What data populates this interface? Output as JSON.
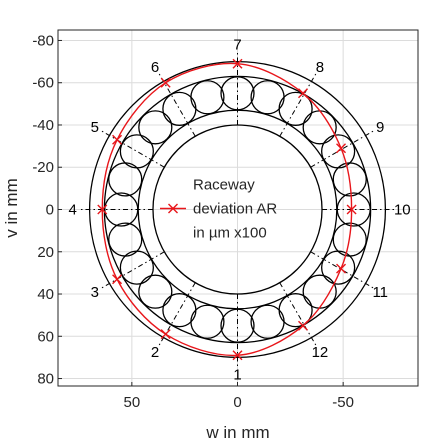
{
  "chart_data": {
    "type": "scatter",
    "xlabel": "w in mm",
    "ylabel": "v in mm",
    "xlim": [
      85,
      -85
    ],
    "ylim": [
      80,
      -85
    ],
    "x_reversed": true,
    "y_reversed": true,
    "xticks": [
      50,
      0,
      -50
    ],
    "yticks": [
      -80,
      -60,
      -40,
      -20,
      0,
      20,
      40,
      60,
      80
    ],
    "grid": true,
    "legend": {
      "lines": [
        "Raceway",
        "deviation AR",
        "in µm x100"
      ],
      "placement": "center"
    },
    "geometry_mm": {
      "outer_ring_outer_r": 70,
      "outer_ring_inner_r": 63,
      "roller_pitch_r": 55,
      "roller_r": 7.8,
      "inner_ring_outer_r": 47,
      "inner_ring_inner_r": 40
    },
    "positions": [
      "1",
      "2",
      "3",
      "4",
      "5",
      "6",
      "7",
      "8",
      "9",
      "10",
      "11",
      "12"
    ],
    "series": [
      {
        "name": "Raceway deviation AR in µm x100",
        "color": "#e8161b",
        "marker": "x",
        "points": [
          {
            "label": "1",
            "w": 0,
            "v": 69
          },
          {
            "label": "2",
            "w": 34,
            "v": 59
          },
          {
            "label": "3",
            "w": 57,
            "v": 33
          },
          {
            "label": "4",
            "w": 64,
            "v": 0
          },
          {
            "label": "5",
            "w": 57,
            "v": -33
          },
          {
            "label": "6",
            "w": 34,
            "v": -60
          },
          {
            "label": "7",
            "w": 0,
            "v": -69
          },
          {
            "label": "8",
            "w": -31,
            "v": -55
          },
          {
            "label": "9",
            "w": -49,
            "v": -29
          },
          {
            "label": "10",
            "w": -54,
            "v": 0
          },
          {
            "label": "11",
            "w": -49,
            "v": 28
          },
          {
            "label": "12",
            "w": -31,
            "v": 55
          }
        ]
      }
    ]
  }
}
